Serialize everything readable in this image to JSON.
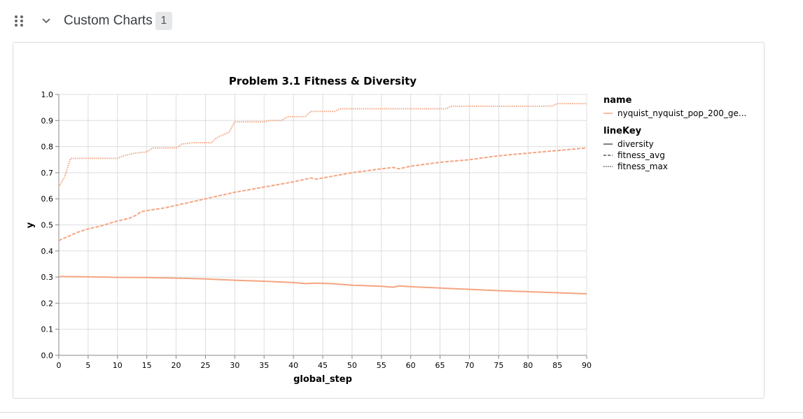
{
  "section": {
    "title": "Custom Charts",
    "count": "1"
  },
  "icons": {
    "drag": "drag-handle-icon",
    "collapse": "chevron-down-icon"
  },
  "colors": {
    "series": "#f4a582",
    "grid": "#dddddd",
    "axis": "#888888",
    "text": "#000000"
  },
  "chart_data": {
    "type": "line",
    "title": "Problem 3.1 Fitness & Diversity",
    "xlabel": "global_step",
    "ylabel": "y",
    "xlim": [
      0,
      90
    ],
    "ylim": [
      0,
      1
    ],
    "xticks": [
      "0",
      "5",
      "10",
      "15",
      "20",
      "25",
      "30",
      "35",
      "40",
      "45",
      "50",
      "55",
      "60",
      "65",
      "70",
      "75",
      "80",
      "85",
      "90"
    ],
    "yticks": [
      "0.0",
      "0.1",
      "0.2",
      "0.3",
      "0.4",
      "0.5",
      "0.6",
      "0.7",
      "0.8",
      "0.9",
      "1.0"
    ],
    "grid": true,
    "legend_position": "right",
    "legend": {
      "name_title": "name",
      "name_entries": [
        "nyquist_nyquist_pop_200_ge..."
      ],
      "linekey_title": "lineKey",
      "linekey_entries": [
        "diversity",
        "fitness_avg",
        "fitness_max"
      ]
    },
    "series": [
      {
        "name": "diversity",
        "dash": "solid",
        "points": [
          [
            0,
            0.302
          ],
          [
            5,
            0.301
          ],
          [
            10,
            0.299
          ],
          [
            15,
            0.298
          ],
          [
            20,
            0.296
          ],
          [
            25,
            0.293
          ],
          [
            30,
            0.288
          ],
          [
            35,
            0.284
          ],
          [
            40,
            0.279
          ],
          [
            42,
            0.275
          ],
          [
            44,
            0.277
          ],
          [
            47,
            0.274
          ],
          [
            50,
            0.269
          ],
          [
            55,
            0.265
          ],
          [
            57,
            0.261
          ],
          [
            58,
            0.266
          ],
          [
            60,
            0.263
          ],
          [
            65,
            0.258
          ],
          [
            70,
            0.253
          ],
          [
            75,
            0.248
          ],
          [
            80,
            0.244
          ],
          [
            85,
            0.24
          ],
          [
            90,
            0.236
          ]
        ]
      },
      {
        "name": "fitness_avg",
        "dash": "dashed",
        "points": [
          [
            0,
            0.44
          ],
          [
            1,
            0.45
          ],
          [
            2,
            0.46
          ],
          [
            3,
            0.47
          ],
          [
            5,
            0.485
          ],
          [
            7,
            0.495
          ],
          [
            10,
            0.515
          ],
          [
            12,
            0.525
          ],
          [
            13,
            0.535
          ],
          [
            14,
            0.55
          ],
          [
            15,
            0.555
          ],
          [
            18,
            0.565
          ],
          [
            20,
            0.575
          ],
          [
            22,
            0.585
          ],
          [
            24,
            0.595
          ],
          [
            27,
            0.61
          ],
          [
            30,
            0.625
          ],
          [
            35,
            0.645
          ],
          [
            40,
            0.665
          ],
          [
            43,
            0.68
          ],
          [
            44,
            0.675
          ],
          [
            45,
            0.68
          ],
          [
            50,
            0.7
          ],
          [
            55,
            0.715
          ],
          [
            57,
            0.72
          ],
          [
            58,
            0.715
          ],
          [
            60,
            0.725
          ],
          [
            65,
            0.74
          ],
          [
            70,
            0.75
          ],
          [
            75,
            0.765
          ],
          [
            80,
            0.775
          ],
          [
            85,
            0.785
          ],
          [
            90,
            0.795
          ]
        ]
      },
      {
        "name": "fitness_max",
        "dash": "dotted",
        "points": [
          [
            0,
            0.645
          ],
          [
            1,
            0.685
          ],
          [
            2,
            0.755
          ],
          [
            10,
            0.755
          ],
          [
            11,
            0.765
          ],
          [
            13,
            0.775
          ],
          [
            15,
            0.78
          ],
          [
            16,
            0.795
          ],
          [
            20,
            0.795
          ],
          [
            21,
            0.81
          ],
          [
            23,
            0.815
          ],
          [
            26,
            0.815
          ],
          [
            27,
            0.835
          ],
          [
            28,
            0.845
          ],
          [
            29,
            0.855
          ],
          [
            30,
            0.895
          ],
          [
            35,
            0.895
          ],
          [
            36,
            0.9
          ],
          [
            38,
            0.9
          ],
          [
            39,
            0.915
          ],
          [
            42,
            0.915
          ],
          [
            43,
            0.935
          ],
          [
            47,
            0.935
          ],
          [
            48,
            0.945
          ],
          [
            66,
            0.945
          ],
          [
            67,
            0.955
          ],
          [
            84,
            0.955
          ],
          [
            85,
            0.965
          ],
          [
            90,
            0.965
          ]
        ]
      }
    ]
  }
}
